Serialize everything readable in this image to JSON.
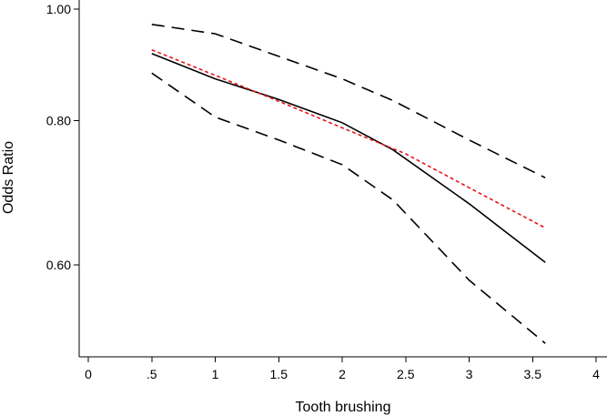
{
  "chart_data": {
    "type": "line",
    "xlabel": "Tooth brushing",
    "ylabel": "Odds Ratio",
    "xlim": [
      0,
      4
    ],
    "xticks": [
      {
        "value": 0,
        "label": "0"
      },
      {
        "value": 0.5,
        "label": ".5"
      },
      {
        "value": 1,
        "label": "1"
      },
      {
        "value": 1.5,
        "label": "1.5"
      },
      {
        "value": 2,
        "label": "2"
      },
      {
        "value": 2.5,
        "label": "2.5"
      },
      {
        "value": 3,
        "label": "3"
      },
      {
        "value": 3.5,
        "label": "3.5"
      },
      {
        "value": 4,
        "label": "4"
      }
    ],
    "yscale": "log",
    "ylim": [
      0.525,
      1.005
    ],
    "yticks": [
      {
        "value": 1.0,
        "label": "1.00"
      },
      {
        "value": 0.8,
        "label": "0.80"
      },
      {
        "value": 0.6,
        "label": "0.60"
      }
    ],
    "grid": false,
    "legend": "none",
    "series": [
      {
        "role": "estimate",
        "color": "#000000",
        "style": "solid",
        "x": [
          0.5,
          1.0,
          1.5,
          2.0,
          2.4,
          3.0,
          3.6
        ],
        "y": [
          0.915,
          0.87,
          0.835,
          0.797,
          0.755,
          0.678,
          0.603
        ]
      },
      {
        "role": "upper-ci",
        "color": "#000000",
        "style": "dashed",
        "x": [
          0.5,
          1.0,
          1.5,
          2.0,
          2.4,
          3.0,
          3.6
        ],
        "y": [
          0.97,
          0.952,
          0.91,
          0.87,
          0.833,
          0.77,
          0.714
        ]
      },
      {
        "role": "lower-ci",
        "color": "#000000",
        "style": "dashed",
        "x": [
          0.5,
          1.0,
          1.5,
          2.0,
          2.4,
          3.0,
          3.6
        ],
        "y": [
          0.88,
          0.806,
          0.77,
          0.733,
          0.683,
          0.582,
          0.513
        ]
      },
      {
        "role": "reference",
        "color": "#e8141a",
        "style": "dotted",
        "x": [
          0.5,
          1.0,
          1.5,
          2.0,
          2.5,
          3.0,
          3.6
        ],
        "y": [
          0.922,
          0.876,
          0.832,
          0.789,
          0.749,
          0.7,
          0.646
        ]
      }
    ]
  }
}
